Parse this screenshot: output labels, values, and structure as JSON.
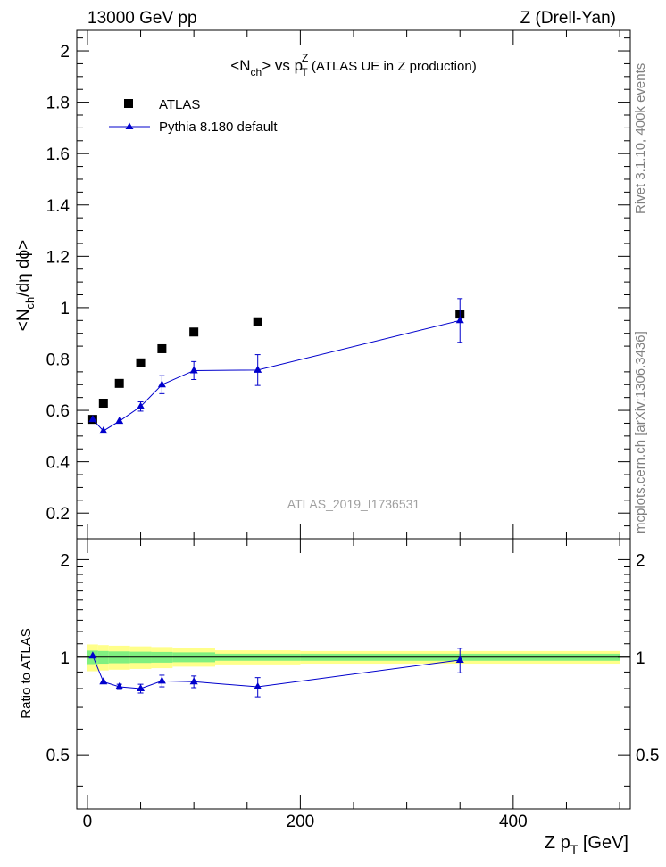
{
  "header": {
    "left": "13000 GeV pp",
    "right": "Z (Drell-Yan)"
  },
  "side_labels": {
    "rivet": "Rivet 3.1.10,  400k events",
    "mcplots": "mcplots.cern.ch [arXiv:1306.3436]"
  },
  "chart_data": [
    {
      "type": "scatter",
      "title": {
        "base": "<N",
        "base_sub": "ch",
        "mid": "> vs p",
        "mid_sup": "Z",
        "mid_sub": "T",
        "tail": " (ATLAS UE in Z production)"
      },
      "ylabel": {
        "a": "<N",
        "a_sub": "ch",
        "b": "/dη dϕ>"
      },
      "watermark": "ATLAS_2019_I1736531",
      "xlim": [
        -10,
        510
      ],
      "ylim": [
        0.1,
        2.08
      ],
      "xticks": [
        0,
        200,
        400
      ],
      "yticks": [
        0.2,
        0.4,
        0.6,
        0.8,
        1,
        1.2,
        1.4,
        1.6,
        1.8,
        2
      ],
      "ytick_labels": [
        "0.2",
        "0.4",
        "0.6",
        "0.8",
        "1",
        "1.2",
        "1.4",
        "1.6",
        "1.8",
        "2"
      ],
      "legend": {
        "placement": "top-left"
      },
      "series": [
        {
          "name": "ATLAS",
          "color": "#000000",
          "marker": "square",
          "x": [
            5,
            15,
            30,
            50,
            70,
            100,
            160,
            350
          ],
          "y": [
            0.565,
            0.628,
            0.705,
            0.785,
            0.84,
            0.905,
            0.945,
            0.975
          ]
        },
        {
          "name": "Pythia 8.180 default",
          "color": "#0000cc",
          "marker": "triangle",
          "x": [
            5,
            15,
            30,
            50,
            70,
            100,
            160,
            350
          ],
          "y": [
            0.565,
            0.52,
            0.558,
            0.615,
            0.7,
            0.755,
            0.757,
            0.95
          ],
          "yerr": [
            0.008,
            0.008,
            0.01,
            0.018,
            0.035,
            0.035,
            0.06,
            0.085
          ]
        }
      ]
    },
    {
      "type": "line",
      "ylabel": "Ratio to ATLAS",
      "xlabel": {
        "a": "Z p",
        "a_sub": "T",
        "b": " [GeV]"
      },
      "xlim": [
        -10,
        510
      ],
      "ylim": [
        0.34,
        2.32
      ],
      "xticks": [
        0,
        200,
        400
      ],
      "xtick_labels": [
        "0",
        "200",
        "400"
      ],
      "yticks": [
        0.5,
        1,
        2
      ],
      "ytick_labels": [
        "0.5",
        "1",
        "2"
      ],
      "bands": {
        "edges": [
          0,
          10,
          20,
          40,
          60,
          80,
          120,
          200,
          500
        ],
        "green": [
          0.048,
          0.045,
          0.042,
          0.04,
          0.038,
          0.035,
          0.025,
          0.025
        ],
        "yellow": [
          0.095,
          0.09,
          0.085,
          0.08,
          0.075,
          0.065,
          0.05,
          0.045
        ],
        "green_color": "#80f080",
        "yellow_color": "#ffff8a"
      },
      "series": [
        {
          "name": "Pythia 8.180 default",
          "color": "#0000cc",
          "x": [
            5,
            15,
            30,
            50,
            70,
            100,
            160,
            350
          ],
          "y": [
            1.01,
            0.84,
            0.81,
            0.8,
            0.845,
            0.84,
            0.81,
            0.98
          ],
          "yerr": [
            0.012,
            0.012,
            0.015,
            0.025,
            0.035,
            0.035,
            0.055,
            0.085
          ]
        }
      ]
    }
  ]
}
